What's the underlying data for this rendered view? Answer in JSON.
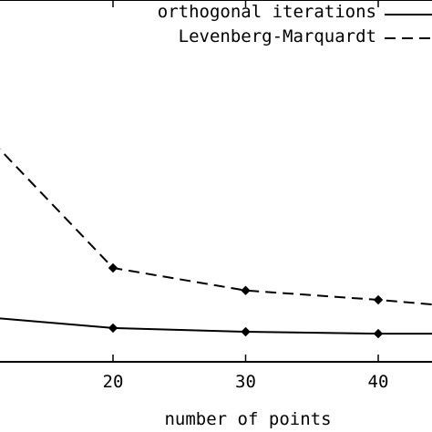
{
  "chart_data": {
    "type": "line",
    "title": "",
    "xlabel": "number of points",
    "ylabel": "",
    "xlim": [
      10,
      45
    ],
    "ylim": [
      0.0,
      1.0
    ],
    "xticks": [
      "20",
      "30",
      "40"
    ],
    "xtick_values": [
      20,
      30,
      40
    ],
    "grid": false,
    "legend_position": "top-right",
    "series": [
      {
        "name": "orthogonal iterations",
        "line_style": "solid",
        "color": "#000000",
        "x": [
          10,
          20,
          30,
          40,
          45
        ],
        "y": [
          0.12,
          0.09,
          0.08,
          0.075,
          0.075
        ]
      },
      {
        "name": "Levenberg-Marquardt",
        "line_style": "dashed",
        "color": "#000000",
        "x": [
          10,
          20,
          30,
          40,
          45
        ],
        "y": [
          0.62,
          0.25,
          0.19,
          0.165,
          0.15
        ]
      }
    ]
  }
}
